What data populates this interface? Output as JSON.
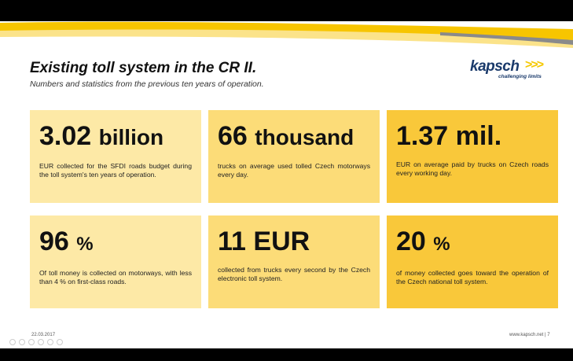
{
  "slide": {
    "title": "Existing toll system in the CR II.",
    "subtitle": "Numbers and statistics from the previous ten years of operation."
  },
  "logo": {
    "word": "kapsch",
    "arrows": ">>>",
    "tagline": "challenging limits",
    "arrow_color": "#f5c800",
    "word_color": "#1a3a6b"
  },
  "stats": [
    {
      "value": "3.02",
      "unit": "billion",
      "text": "EUR collected for the SFDI roads budget during the toll system's ten years of operation."
    },
    {
      "value": "66",
      "unit": "thousand",
      "text": "trucks on average used tolled Czech motorways every day."
    },
    {
      "value": "1.37 mil.",
      "unit": "",
      "text": "EUR on average paid by trucks on Czech roads every working day."
    },
    {
      "value": "96",
      "unit": "%",
      "text": "Of toll money is collected on motorways, with less than 4 % on first-class roads."
    },
    {
      "value": "11 EUR",
      "unit": "",
      "text": "collected from trucks every second by the Czech electronic toll system."
    },
    {
      "value": "20",
      "unit": "%",
      "text": "of money collected goes toward the operation of the Czech national toll system."
    }
  ],
  "colors": {
    "light": "#fde9a6",
    "medium": "#fcdc78",
    "strong": "#f9c83a"
  },
  "footer": {
    "date": "22.03.2017",
    "website": "www.kapsch.net",
    "separator": "|",
    "page": "7"
  }
}
